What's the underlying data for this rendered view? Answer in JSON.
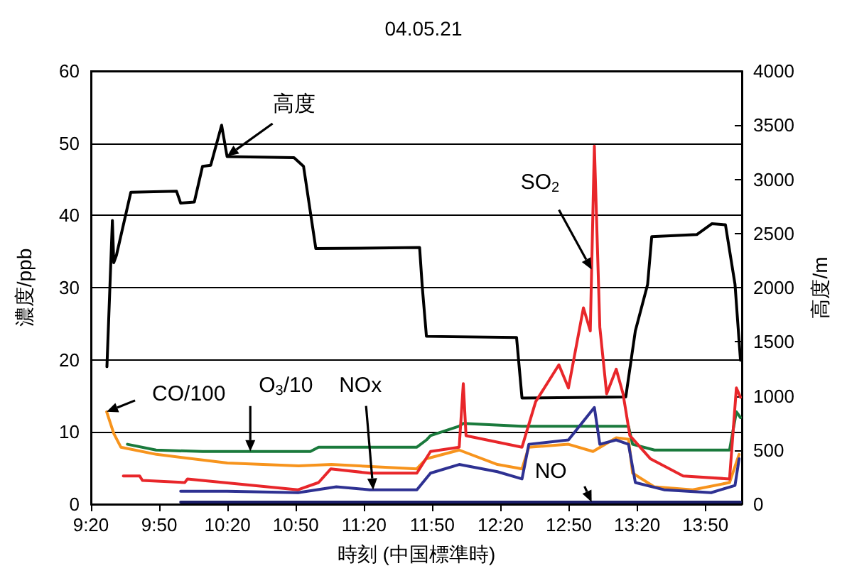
{
  "chart_data": {
    "type": "line",
    "title": "04.05.21",
    "xlabel": "時刻 (中国標準時)",
    "ylabel": "濃度/ppb",
    "y2label": "高度/m",
    "xlim": [
      9.333,
      14.1
    ],
    "xticks": [
      {
        "value": 9.333,
        "label": "9:20"
      },
      {
        "value": 9.833,
        "label": "9:50"
      },
      {
        "value": 10.333,
        "label": "10:20"
      },
      {
        "value": 10.833,
        "label": "10:50"
      },
      {
        "value": 11.333,
        "label": "11:20"
      },
      {
        "value": 11.833,
        "label": "11:50"
      },
      {
        "value": 12.333,
        "label": "12:20"
      },
      {
        "value": 12.833,
        "label": "12:50"
      },
      {
        "value": 13.333,
        "label": "13:20"
      },
      {
        "value": 13.833,
        "label": "13:50"
      }
    ],
    "ylim": [
      0,
      60
    ],
    "yticks": [
      0,
      10,
      20,
      30,
      40,
      50,
      60
    ],
    "y2lim": [
      0,
      4000
    ],
    "y2ticks": [
      0,
      500,
      1000,
      1500,
      2000,
      2500,
      3000,
      3500,
      4000
    ],
    "annotations": [
      {
        "text": "高度",
        "x": 10.33,
        "y": 48.2
      },
      {
        "text": "O$_{3}$/10",
        "x": 10.5,
        "y": 7.3
      },
      {
        "text": "CO/100",
        "x": 9.448,
        "y": 12.8
      },
      {
        "text": "SO$_{2}$",
        "x": 13.0,
        "y": 32.5
      },
      {
        "text": "NOx",
        "x": 11.4,
        "y": 2.0
      },
      {
        "text": "NO",
        "x": 13.0,
        "y": 0.3
      }
    ],
    "grid": "y",
    "marker": "none",
    "line_style": "solid",
    "series": [
      {
        "color": "#000000",
        "axis": "y2",
        "x": [
          9.45,
          9.49,
          9.5,
          9.52,
          9.625,
          9.96,
          9.99,
          10.09,
          10.15,
          10.21,
          10.29,
          10.33,
          10.82,
          10.89,
          10.98,
          11.74,
          11.76,
          11.79,
          12.45,
          12.49,
          13.25,
          13.32,
          13.41,
          13.44,
          13.77,
          13.88,
          13.98,
          14.05,
          14.09
        ],
        "values": [
          1270,
          2620,
          2230,
          2300,
          2880,
          2890,
          2780,
          2790,
          3120,
          3130,
          3500,
          3210,
          3200,
          3120,
          2360,
          2370,
          2000,
          1550,
          1540,
          980,
          990,
          1600,
          2030,
          2470,
          2490,
          2590,
          2580,
          2030,
          1330
        ]
      },
      {
        "color": "#1a7a3c",
        "x": [
          9.6,
          9.81,
          10.15,
          10.94,
          11.0,
          11.72,
          11.79,
          11.82,
          12.03,
          12.06,
          12.49,
          12.83,
          13.18,
          13.27,
          13.3,
          13.46,
          14.01,
          14.06,
          14.09
        ],
        "values": [
          8.3,
          7.5,
          7.3,
          7.3,
          7.9,
          7.9,
          8.9,
          9.5,
          10.8,
          11.2,
          10.8,
          10.8,
          10.8,
          10.8,
          8.3,
          7.5,
          7.5,
          12.8,
          12.0
        ]
      },
      {
        "color": "#f7941d",
        "x": [
          9.448,
          9.5,
          9.552,
          9.813,
          10.333,
          10.854,
          11.094,
          11.719,
          11.79,
          12.03,
          12.31,
          12.49,
          12.54,
          12.83,
          13.01,
          13.18,
          13.27,
          13.3,
          13.46,
          13.74,
          14.01,
          14.08
        ],
        "values": [
          12.8,
          9.8,
          7.9,
          6.9,
          5.7,
          5.3,
          5.5,
          4.9,
          6.3,
          7.5,
          5.5,
          4.9,
          7.9,
          8.3,
          7.3,
          9.2,
          9.0,
          4.3,
          2.4,
          2.0,
          3.0,
          6.9
        ]
      },
      {
        "color": "#e8262a",
        "x": [
          9.57,
          9.69,
          9.71,
          10.02,
          10.04,
          10.85,
          11.0,
          11.09,
          11.375,
          11.72,
          11.82,
          12.03,
          12.06,
          12.08,
          12.49,
          12.59,
          12.76,
          12.83,
          12.94,
          12.99,
          13.02,
          13.06,
          13.11,
          13.18,
          13.23,
          13.28,
          13.43,
          13.67,
          14.01,
          14.06,
          14.09
        ],
        "values": [
          3.9,
          3.9,
          3.3,
          3.0,
          3.5,
          2.0,
          3.0,
          4.9,
          4.3,
          4.3,
          7.3,
          7.9,
          16.7,
          9.5,
          7.9,
          14.2,
          19.3,
          16.1,
          27.2,
          24.0,
          49.6,
          24.5,
          15.3,
          18.7,
          15.3,
          9.5,
          6.3,
          3.9,
          3.5,
          16.1,
          14.8
        ]
      },
      {
        "color": "#2e3192",
        "x": [
          9.99,
          10.33,
          10.85,
          11.13,
          11.375,
          11.72,
          11.82,
          12.03,
          12.31,
          12.49,
          12.54,
          12.83,
          13.02,
          13.06,
          13.18,
          13.27,
          13.32,
          13.53,
          13.875,
          14.05,
          14.08
        ],
        "values": [
          1.8,
          1.8,
          1.6,
          2.4,
          2.0,
          2.0,
          4.3,
          5.5,
          4.5,
          3.5,
          8.3,
          8.9,
          13.4,
          8.3,
          8.9,
          8.3,
          3.0,
          2.0,
          1.6,
          2.6,
          6.3
        ]
      },
      {
        "color": "#1c1f6b",
        "x": [
          9.99,
          11.0,
          12.0,
          13.0,
          14.09
        ],
        "values": [
          0.3,
          0.3,
          0.3,
          0.3,
          0.3
        ]
      }
    ]
  }
}
